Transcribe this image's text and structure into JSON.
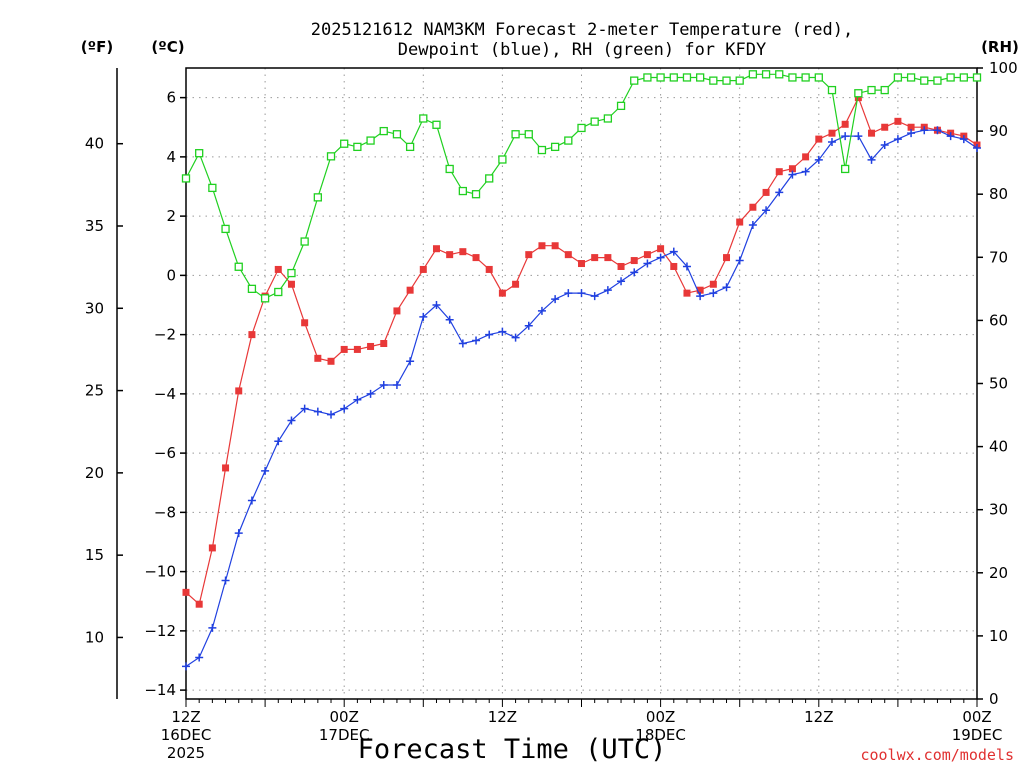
{
  "chart_data": {
    "type": "line",
    "title_line1": "2025121612 NAM3KM Forecast 2-meter Temperature (red),",
    "title_line2": "Dewpoint (blue), RH (green) for KFDY",
    "unit_labels": {
      "fahrenheit": "(ºF)",
      "celsius": "(ºC)",
      "rh": "(RH)"
    },
    "xlabel": "Forecast Time (UTC)",
    "credit": "coolwx.com/models",
    "x_range_hours": [
      0,
      60
    ],
    "x_ticks": [
      {
        "h": 0,
        "lines": [
          "12Z",
          "16DEC",
          "2025"
        ]
      },
      {
        "h": 12,
        "lines": [
          "00Z",
          "17DEC"
        ]
      },
      {
        "h": 24,
        "lines": [
          "12Z"
        ]
      },
      {
        "h": 36,
        "lines": [
          "00Z",
          "18DEC"
        ]
      },
      {
        "h": 48,
        "lines": [
          "12Z"
        ]
      },
      {
        "h": 60,
        "lines": [
          "00Z",
          "19DEC"
        ]
      }
    ],
    "y_celsius": {
      "range": [
        -14.3,
        7
      ],
      "ticks": [
        -14,
        -12,
        -10,
        -8,
        -6,
        -4,
        -2,
        0,
        2,
        4,
        6
      ]
    },
    "y_fahrenheit": {
      "ticks": [
        10,
        15,
        20,
        25,
        30,
        35,
        40
      ]
    },
    "y_rh": {
      "range": [
        0,
        100
      ],
      "ticks": [
        0,
        10,
        20,
        30,
        40,
        50,
        60,
        70,
        80,
        90,
        100
      ]
    },
    "grid": true,
    "series": [
      {
        "name": "Temperature",
        "color": "#e83838",
        "marker": "filled-square",
        "axis": "celsius",
        "x": [
          0,
          1,
          2,
          3,
          4,
          5,
          6,
          7,
          8,
          9,
          10,
          11,
          12,
          13,
          14,
          15,
          16,
          17,
          18,
          19,
          20,
          21,
          22,
          23,
          24,
          25,
          26,
          27,
          28,
          29,
          30,
          31,
          32,
          33,
          34,
          35,
          36,
          37,
          38,
          39,
          40,
          41,
          42,
          43,
          44,
          45,
          46,
          47,
          48,
          49,
          50,
          51,
          52,
          53,
          54,
          55,
          56,
          57,
          58,
          59,
          60
        ],
        "values": [
          -10.7,
          -11.1,
          -9.2,
          -6.5,
          -3.9,
          -2.0,
          -0.7,
          0.2,
          -0.3,
          -1.6,
          -2.8,
          -2.9,
          -2.5,
          -2.5,
          -2.4,
          -2.3,
          -1.2,
          -0.5,
          0.2,
          0.9,
          0.7,
          0.8,
          0.6,
          0.2,
          -0.6,
          -0.3,
          0.7,
          1.0,
          1.0,
          0.7,
          0.4,
          0.6,
          0.6,
          0.3,
          0.5,
          0.7,
          0.9,
          0.3,
          -0.6,
          -0.5,
          -0.3,
          0.6,
          1.8,
          2.3,
          2.8,
          3.5,
          3.6,
          4.0,
          4.6,
          4.8,
          5.1,
          6.0,
          4.8,
          5.0,
          5.2,
          5.0,
          5.0,
          4.9,
          4.8,
          4.7,
          4.4
        ]
      },
      {
        "name": "Dewpoint",
        "color": "#2040e0",
        "marker": "plus",
        "axis": "celsius",
        "x": [
          0,
          1,
          2,
          3,
          4,
          5,
          6,
          7,
          8,
          9,
          10,
          11,
          12,
          13,
          14,
          15,
          16,
          17,
          18,
          19,
          20,
          21,
          22,
          23,
          24,
          25,
          26,
          27,
          28,
          29,
          30,
          31,
          32,
          33,
          34,
          35,
          36,
          37,
          38,
          39,
          40,
          41,
          42,
          43,
          44,
          45,
          46,
          47,
          48,
          49,
          50,
          51,
          52,
          53,
          54,
          55,
          56,
          57,
          58,
          59,
          60
        ],
        "values": [
          -13.2,
          -12.9,
          -11.9,
          -10.3,
          -8.7,
          -7.6,
          -6.6,
          -5.6,
          -4.9,
          -4.5,
          -4.6,
          -4.7,
          -4.5,
          -4.2,
          -4.0,
          -3.7,
          -3.7,
          -2.9,
          -1.4,
          -1.0,
          -1.5,
          -2.3,
          -2.2,
          -2.0,
          -1.9,
          -2.1,
          -1.7,
          -1.2,
          -0.8,
          -0.6,
          -0.6,
          -0.7,
          -0.5,
          -0.2,
          0.1,
          0.4,
          0.6,
          0.8,
          0.3,
          -0.7,
          -0.6,
          -0.4,
          0.5,
          1.7,
          2.2,
          2.8,
          3.4,
          3.5,
          3.9,
          4.5,
          4.7,
          4.7,
          3.9,
          4.4,
          4.6,
          4.8,
          4.9,
          4.9,
          4.7,
          4.6,
          4.3
        ]
      },
      {
        "name": "RH",
        "color": "#20d020",
        "marker": "open-square",
        "axis": "rh",
        "x": [
          0,
          1,
          2,
          3,
          4,
          5,
          6,
          7,
          8,
          9,
          10,
          11,
          12,
          13,
          14,
          15,
          16,
          17,
          18,
          19,
          20,
          21,
          22,
          23,
          24,
          25,
          26,
          27,
          28,
          29,
          30,
          31,
          32,
          33,
          34,
          35,
          36,
          37,
          38,
          39,
          40,
          41,
          42,
          43,
          44,
          45,
          46,
          47,
          48,
          49,
          50,
          51,
          52,
          53,
          54,
          55,
          56,
          57,
          58,
          59,
          60
        ],
        "values": [
          82.5,
          86.5,
          81,
          74.5,
          68.5,
          65,
          63.5,
          64.5,
          67.5,
          72.5,
          79.5,
          86,
          88,
          87.5,
          88.5,
          90,
          89.5,
          87.5,
          92,
          91,
          84,
          80.5,
          80,
          82.5,
          85.5,
          89.5,
          89.5,
          87,
          87.5,
          88.5,
          90.5,
          91.5,
          92,
          94,
          98,
          98.5,
          98.5,
          98.5,
          98.5,
          98.5,
          98,
          98,
          98,
          99,
          99,
          99,
          98.5,
          98.5,
          98.5,
          96.5,
          84,
          96,
          96.5,
          96.5,
          98.5,
          98.5,
          98,
          98,
          98.5,
          98.5,
          98.5
        ]
      }
    ]
  }
}
